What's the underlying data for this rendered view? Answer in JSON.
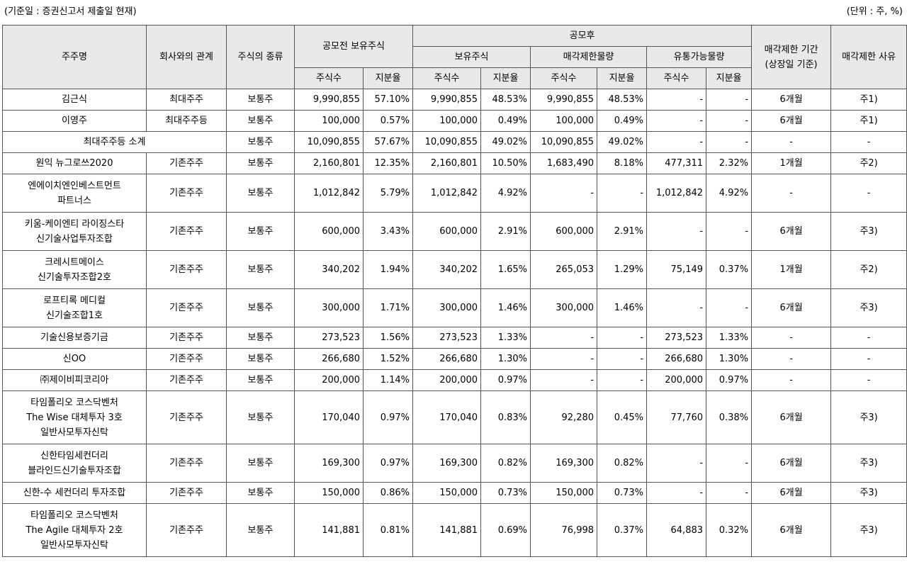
{
  "notes": {
    "base_date": "(기준일 : 증권신고서 제출일 현재)",
    "unit": "(단위 : 주, %)"
  },
  "header": {
    "holder": "주주명",
    "relation": "회사와의 관계",
    "type": "주식의 종류",
    "before": "공모전 보유주식",
    "after": "공모후",
    "held": "보유주식",
    "restricted": "매각제한물량",
    "tradable": "유통가능물량",
    "period": "매각제한 기간\n(상장일 기준)",
    "reason": "매각제한 사유",
    "shares": "주식수",
    "ratio": "지분율"
  },
  "rows": [
    {
      "name": "김근식",
      "rel": "최대주주",
      "type": "보통주",
      "pre_sh": "9,990,855",
      "pre_r": "57.10%",
      "post_sh": "9,990,855",
      "post_r": "48.53%",
      "res_sh": "9,990,855",
      "res_r": "48.53%",
      "tr_sh": "-",
      "tr_r": "-",
      "period": "6개월",
      "reason": "주1)"
    },
    {
      "name": "이영주",
      "rel": "최대주주등",
      "type": "보통주",
      "pre_sh": "100,000",
      "pre_r": "0.57%",
      "post_sh": "100,000",
      "post_r": "0.49%",
      "res_sh": "100,000",
      "res_r": "0.49%",
      "tr_sh": "-",
      "tr_r": "-",
      "period": "6개월",
      "reason": "주1)"
    },
    {
      "name": "최대주주등 소계",
      "type": "보통주",
      "pre_sh": "10,090,855",
      "pre_r": "57.67%",
      "post_sh": "10,090,855",
      "post_r": "49.02%",
      "res_sh": "10,090,855",
      "res_r": "49.02%",
      "tr_sh": "-",
      "tr_r": "-",
      "period": "-",
      "reason": "-"
    },
    {
      "name": "원익 뉴그로쓰2020",
      "rel": "기존주주",
      "type": "보통주",
      "pre_sh": "2,160,801",
      "pre_r": "12.35%",
      "post_sh": "2,160,801",
      "post_r": "10.50%",
      "res_sh": "1,683,490",
      "res_r": "8.18%",
      "tr_sh": "477,311",
      "tr_r": "2.32%",
      "period": "1개월",
      "reason": "주2)"
    },
    {
      "name": "엔에이치엔인베스트먼트\n파트너스",
      "rel": "기존주주",
      "type": "보통주",
      "pre_sh": "1,012,842",
      "pre_r": "5.79%",
      "post_sh": "1,012,842",
      "post_r": "4.92%",
      "res_sh": "-",
      "res_r": "-",
      "tr_sh": "1,012,842",
      "tr_r": "4.92%",
      "period": "-",
      "reason": "-"
    },
    {
      "name": "키움-케이엔티 라이징스타\n신기술사업투자조합",
      "rel": "기존주주",
      "type": "보통주",
      "pre_sh": "600,000",
      "pre_r": "3.43%",
      "post_sh": "600,000",
      "post_r": "2.91%",
      "res_sh": "600,000",
      "res_r": "2.91%",
      "tr_sh": "-",
      "tr_r": "-",
      "period": "6개월",
      "reason": "주3)"
    },
    {
      "name": "크레시트메이스\n신기술투자조합2호",
      "rel": "기존주주",
      "type": "보통주",
      "pre_sh": "340,202",
      "pre_r": "1.94%",
      "post_sh": "340,202",
      "post_r": "1.65%",
      "res_sh": "265,053",
      "res_r": "1.29%",
      "tr_sh": "75,149",
      "tr_r": "0.37%",
      "period": "1개월",
      "reason": "주2)"
    },
    {
      "name": "로프티록 메디컬\n신기술조합1호",
      "rel": "기존주주",
      "type": "보통주",
      "pre_sh": "300,000",
      "pre_r": "1.71%",
      "post_sh": "300,000",
      "post_r": "1.46%",
      "res_sh": "300,000",
      "res_r": "1.46%",
      "tr_sh": "-",
      "tr_r": "-",
      "period": "6개월",
      "reason": "주3)"
    },
    {
      "name": "기술신용보증기금",
      "rel": "기존주주",
      "type": "보통주",
      "pre_sh": "273,523",
      "pre_r": "1.56%",
      "post_sh": "273,523",
      "post_r": "1.33%",
      "res_sh": "-",
      "res_r": "-",
      "tr_sh": "273,523",
      "tr_r": "1.33%",
      "period": "-",
      "reason": "-"
    },
    {
      "name": "신OO",
      "rel": "기존주주",
      "type": "보통주",
      "pre_sh": "266,680",
      "pre_r": "1.52%",
      "post_sh": "266,680",
      "post_r": "1.30%",
      "res_sh": "-",
      "res_r": "-",
      "tr_sh": "266,680",
      "tr_r": "1.30%",
      "period": "-",
      "reason": "-"
    },
    {
      "name": "㈜제이비피코리아",
      "rel": "기존주주",
      "type": "보통주",
      "pre_sh": "200,000",
      "pre_r": "1.14%",
      "post_sh": "200,000",
      "post_r": "0.97%",
      "res_sh": "-",
      "res_r": "-",
      "tr_sh": "200,000",
      "tr_r": "0.97%",
      "period": "-",
      "reason": "-"
    },
    {
      "name": "타임폴리오 코스닥벤처\nThe Wise 대체투자 3호\n일반사모투자신탁",
      "rel": "기존주주",
      "type": "보통주",
      "pre_sh": "170,040",
      "pre_r": "0.97%",
      "post_sh": "170,040",
      "post_r": "0.83%",
      "res_sh": "92,280",
      "res_r": "0.45%",
      "tr_sh": "77,760",
      "tr_r": "0.38%",
      "period": "6개월",
      "reason": "주3)"
    },
    {
      "name": "신한타임세컨더리\n블라인드신기술투자조합",
      "rel": "기존주주",
      "type": "보통주",
      "pre_sh": "169,300",
      "pre_r": "0.97%",
      "post_sh": "169,300",
      "post_r": "0.82%",
      "res_sh": "169,300",
      "res_r": "0.82%",
      "tr_sh": "-",
      "tr_r": "-",
      "period": "6개월",
      "reason": "주3)"
    },
    {
      "name": "신한-수 세컨더리 투자조합",
      "rel": "기존주주",
      "type": "보통주",
      "pre_sh": "150,000",
      "pre_r": "0.86%",
      "post_sh": "150,000",
      "post_r": "0.73%",
      "res_sh": "150,000",
      "res_r": "0.73%",
      "tr_sh": "-",
      "tr_r": "-",
      "period": "6개월",
      "reason": "주3)"
    },
    {
      "name": "타임폴리오 코스닥벤처\nThe Agile 대체투자 2호\n일반사모투자신탁",
      "rel": "기존주주",
      "type": "보통주",
      "pre_sh": "141,881",
      "pre_r": "0.81%",
      "post_sh": "141,881",
      "post_r": "0.69%",
      "res_sh": "76,998",
      "res_r": "0.37%",
      "tr_sh": "64,883",
      "tr_r": "0.32%",
      "period": "6개월",
      "reason": "주3)"
    }
  ]
}
